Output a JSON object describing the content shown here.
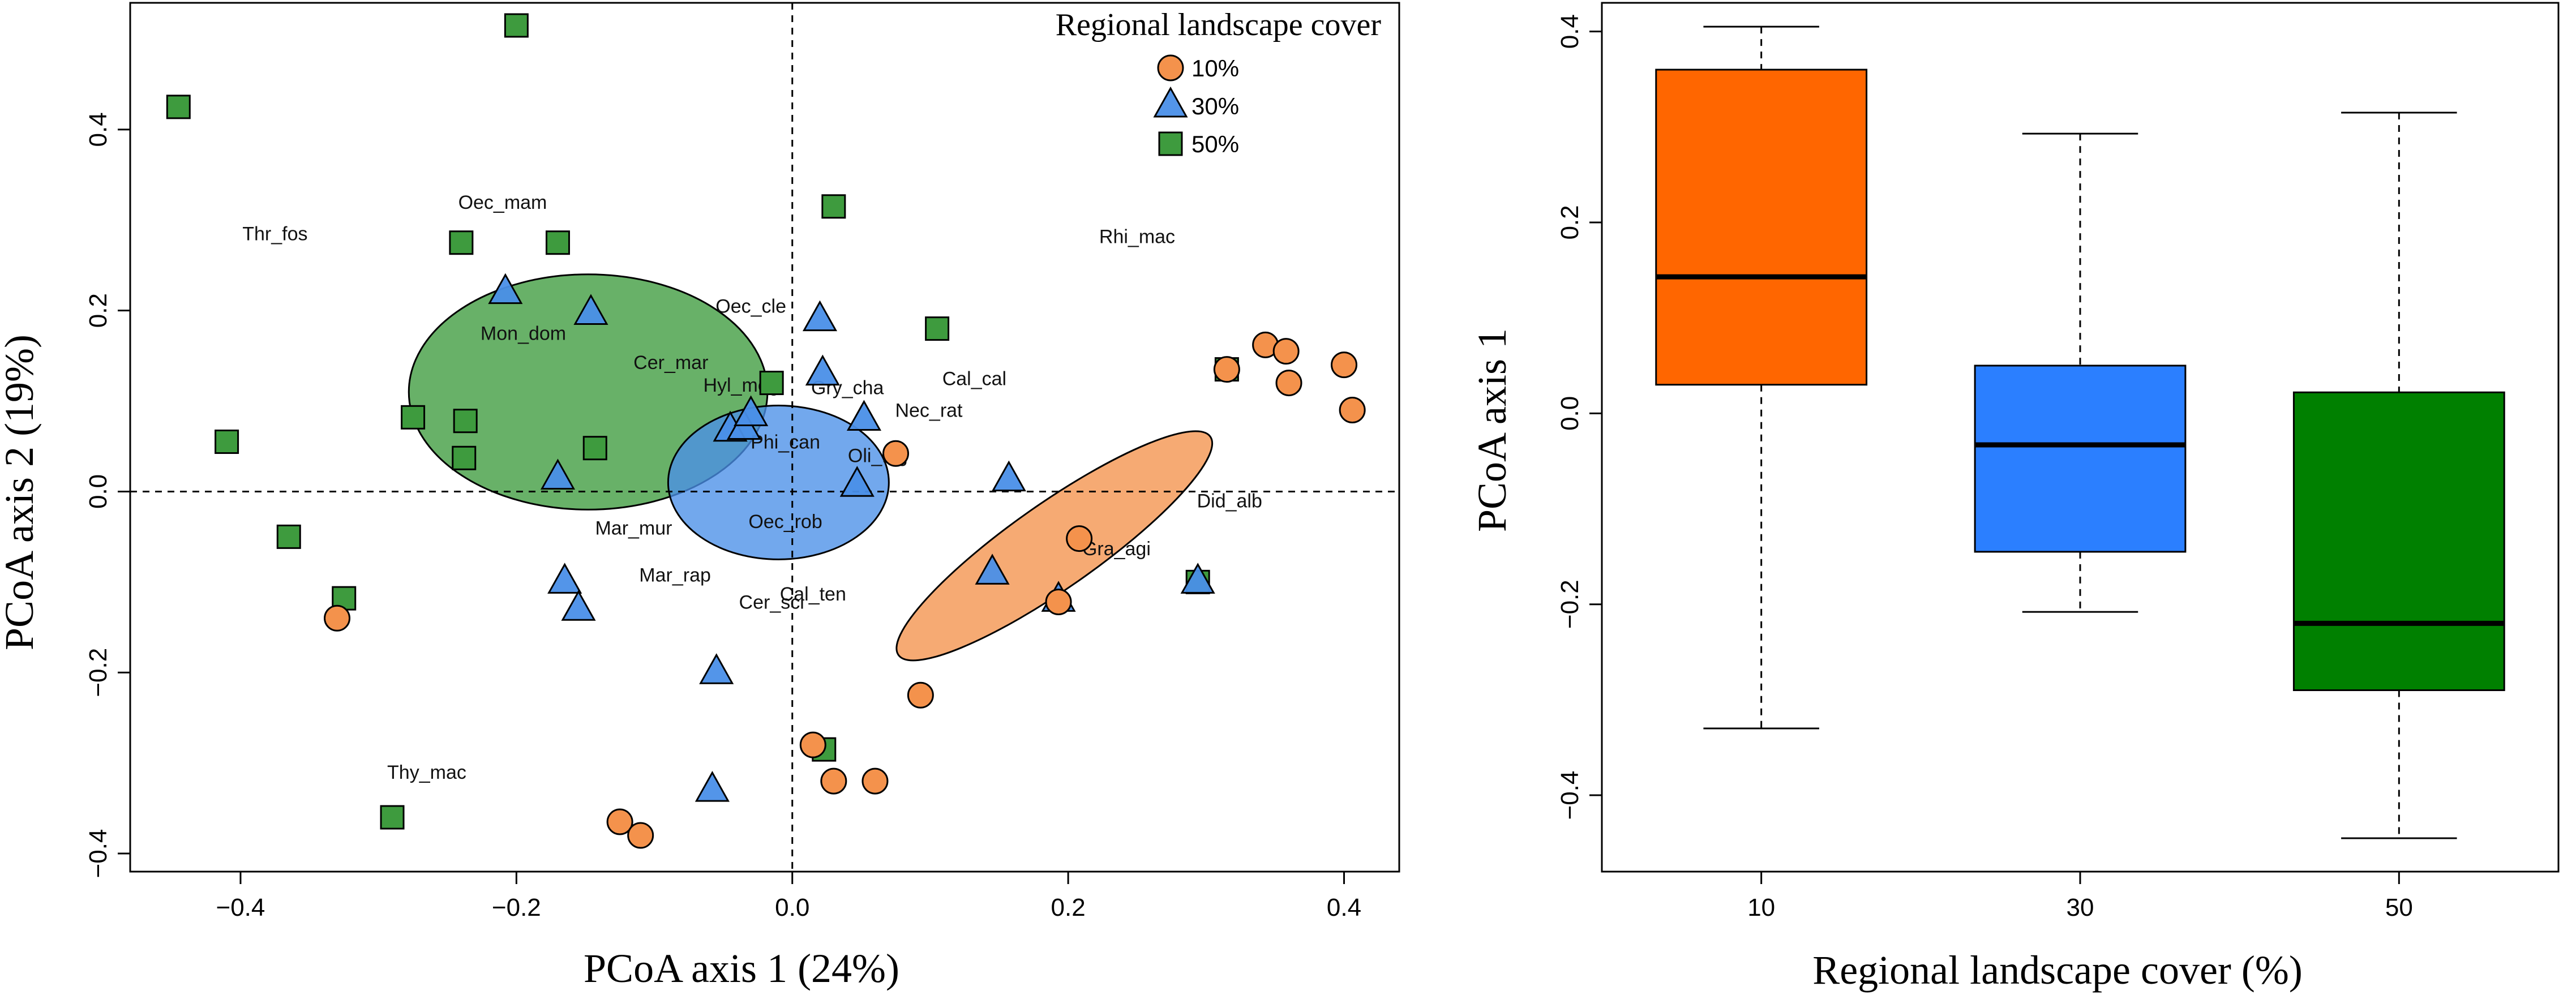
{
  "chart_data": [
    {
      "type": "scatter",
      "title": "",
      "xlabel": "PCoA axis 1 (24%)",
      "ylabel": "PCoA axis 2 (19%)",
      "xlim": [
        -0.48,
        0.44
      ],
      "ylim": [
        -0.42,
        0.54
      ],
      "xticks": [
        -0.4,
        -0.2,
        0,
        0.2,
        0.4
      ],
      "yticks": [
        -0.4,
        -0.2,
        0,
        0.2,
        0.4
      ],
      "xtick_labels": [
        "−0.4",
        "−0.2",
        "0.0",
        "0.2",
        "0.4"
      ],
      "ytick_labels": [
        "−0.4",
        "−0.2",
        "0.0",
        "0.2",
        "0.4"
      ],
      "reference_lines": {
        "x": 0,
        "y": 0,
        "style": "dashed"
      },
      "legend": {
        "title": "Regional landscape cover",
        "position": "top-right",
        "entries": [
          {
            "label": "10%",
            "shape": "circle",
            "color": "#F4924C"
          },
          {
            "label": "30%",
            "shape": "triangle",
            "color": "#4A8FE8"
          },
          {
            "label": "50%",
            "shape": "square",
            "color": "#3E9B3E"
          }
        ]
      },
      "series": [
        {
          "name": "10%",
          "shape": "circle",
          "color": "#F4924C",
          "points": [
            [
              -0.33,
              -0.14
            ],
            [
              -0.125,
              -0.365
            ],
            [
              -0.11,
              -0.38
            ],
            [
              0.015,
              -0.28
            ],
            [
              0.03,
              -0.32
            ],
            [
              0.06,
              -0.32
            ],
            [
              0.093,
              -0.225
            ],
            [
              0.075,
              0.042
            ],
            [
              0.193,
              -0.122
            ],
            [
              0.208,
              -0.052
            ],
            [
              0.315,
              0.135
            ],
            [
              0.343,
              0.162
            ],
            [
              0.358,
              0.155
            ],
            [
              0.36,
              0.12
            ],
            [
              0.4,
              0.14
            ],
            [
              0.406,
              0.09
            ]
          ]
        },
        {
          "name": "30%",
          "shape": "triangle",
          "color": "#4A8FE8",
          "points": [
            [
              -0.208,
              0.22
            ],
            [
              -0.146,
              0.197
            ],
            [
              -0.17,
              0.015
            ],
            [
              -0.165,
              -0.1
            ],
            [
              -0.155,
              -0.13
            ],
            [
              -0.055,
              -0.2
            ],
            [
              -0.058,
              -0.33
            ],
            [
              -0.045,
              0.068
            ],
            [
              -0.035,
              0.07
            ],
            [
              -0.03,
              0.085
            ],
            [
              0.02,
              0.19
            ],
            [
              0.022,
              0.13
            ],
            [
              0.052,
              0.08
            ],
            [
              0.047,
              0.007
            ],
            [
              0.157,
              0.013
            ],
            [
              0.145,
              -0.09
            ],
            [
              0.193,
              -0.12
            ],
            [
              0.294,
              -0.1
            ]
          ]
        },
        {
          "name": "50%",
          "shape": "square",
          "color": "#3E9B3E",
          "points": [
            [
              -0.445,
              0.425
            ],
            [
              -0.41,
              0.055
            ],
            [
              -0.365,
              -0.05
            ],
            [
              -0.325,
              -0.118
            ],
            [
              -0.29,
              -0.36
            ],
            [
              -0.275,
              0.082
            ],
            [
              -0.24,
              0.275
            ],
            [
              -0.237,
              0.078
            ],
            [
              -0.238,
              0.037
            ],
            [
              -0.2,
              0.515
            ],
            [
              -0.17,
              0.275
            ],
            [
              -0.143,
              0.048
            ],
            [
              -0.015,
              0.12
            ],
            [
              0.03,
              0.315
            ],
            [
              0.105,
              0.18
            ],
            [
              0.023,
              -0.285
            ],
            [
              0.315,
              0.135
            ],
            [
              0.294,
              -0.1
            ]
          ]
        }
      ],
      "ellipses": [
        {
          "group": "50%",
          "color": "#3E9B3E",
          "center": [
            -0.148,
            0.11
          ],
          "semi_axis_x": 0.13,
          "semi_axis_y": 0.13,
          "angle_deg": 0
        },
        {
          "group": "30%",
          "color": "#4A8FE8",
          "center": [
            -0.01,
            0.01
          ],
          "semi_axis_x": 0.08,
          "semi_axis_y": 0.085,
          "angle_deg": 0
        },
        {
          "group": "10%",
          "color": "#F4924C",
          "center": [
            0.19,
            -0.06
          ],
          "semi_axis_x": 0.138,
          "semi_axis_y": 0.047,
          "angle_deg": 35
        }
      ],
      "species_labels": [
        {
          "text": "Thr_fos",
          "x": -0.375,
          "y": 0.285
        },
        {
          "text": "Oec_mam",
          "x": -0.21,
          "y": 0.32
        },
        {
          "text": "Rhi_mac",
          "x": 0.25,
          "y": 0.282
        },
        {
          "text": "Oec_cle",
          "x": -0.03,
          "y": 0.205
        },
        {
          "text": "Mon_dom",
          "x": -0.195,
          "y": 0.175
        },
        {
          "text": "Cer_mar",
          "x": -0.088,
          "y": 0.143
        },
        {
          "text": "Hyl_meg",
          "x": -0.037,
          "y": 0.118
        },
        {
          "text": "Gry_cha",
          "x": 0.04,
          "y": 0.115
        },
        {
          "text": "Cal_cal",
          "x": 0.132,
          "y": 0.125
        },
        {
          "text": "Nec_rat",
          "x": 0.099,
          "y": 0.09
        },
        {
          "text": "Phi_can",
          "x": -0.005,
          "y": 0.055
        },
        {
          "text": "Oli_nig",
          "x": 0.062,
          "y": 0.04
        },
        {
          "text": "Did_alb",
          "x": 0.317,
          "y": -0.01
        },
        {
          "text": "Mar_mur",
          "x": -0.115,
          "y": -0.04
        },
        {
          "text": "Oec_rob",
          "x": -0.005,
          "y": -0.033
        },
        {
          "text": "Mar_rap",
          "x": -0.085,
          "y": -0.092
        },
        {
          "text": "Gra_agi",
          "x": 0.235,
          "y": -0.063
        },
        {
          "text": "Cal_ten",
          "x": 0.015,
          "y": -0.113
        },
        {
          "text": "Cer_sci",
          "x": -0.015,
          "y": -0.122
        },
        {
          "text": "Thy_mac",
          "x": -0.265,
          "y": -0.31
        }
      ]
    },
    {
      "type": "box",
      "title": "",
      "xlabel": "Regional landscape cover (%)",
      "ylabel": "PCoA axis 1",
      "categories": [
        "10",
        "30",
        "50"
      ],
      "ylim": [
        -0.48,
        0.43
      ],
      "yticks": [
        -0.4,
        -0.2,
        0,
        0.2,
        0.4
      ],
      "ytick_labels": [
        "−0.4",
        "−0.2",
        "0.0",
        "0.2",
        "0.4"
      ],
      "series": [
        {
          "name": "10",
          "color": "#FF6600",
          "min": -0.33,
          "q1": 0.03,
          "median": 0.143,
          "q3": 0.36,
          "max": 0.405
        },
        {
          "name": "30",
          "color": "#2B7FFF",
          "min": -0.208,
          "q1": -0.145,
          "median": -0.033,
          "q3": 0.05,
          "max": 0.293
        },
        {
          "name": "50",
          "color": "#008000",
          "min": -0.445,
          "q1": -0.29,
          "median": -0.22,
          "q3": 0.022,
          "max": 0.315
        }
      ]
    }
  ]
}
